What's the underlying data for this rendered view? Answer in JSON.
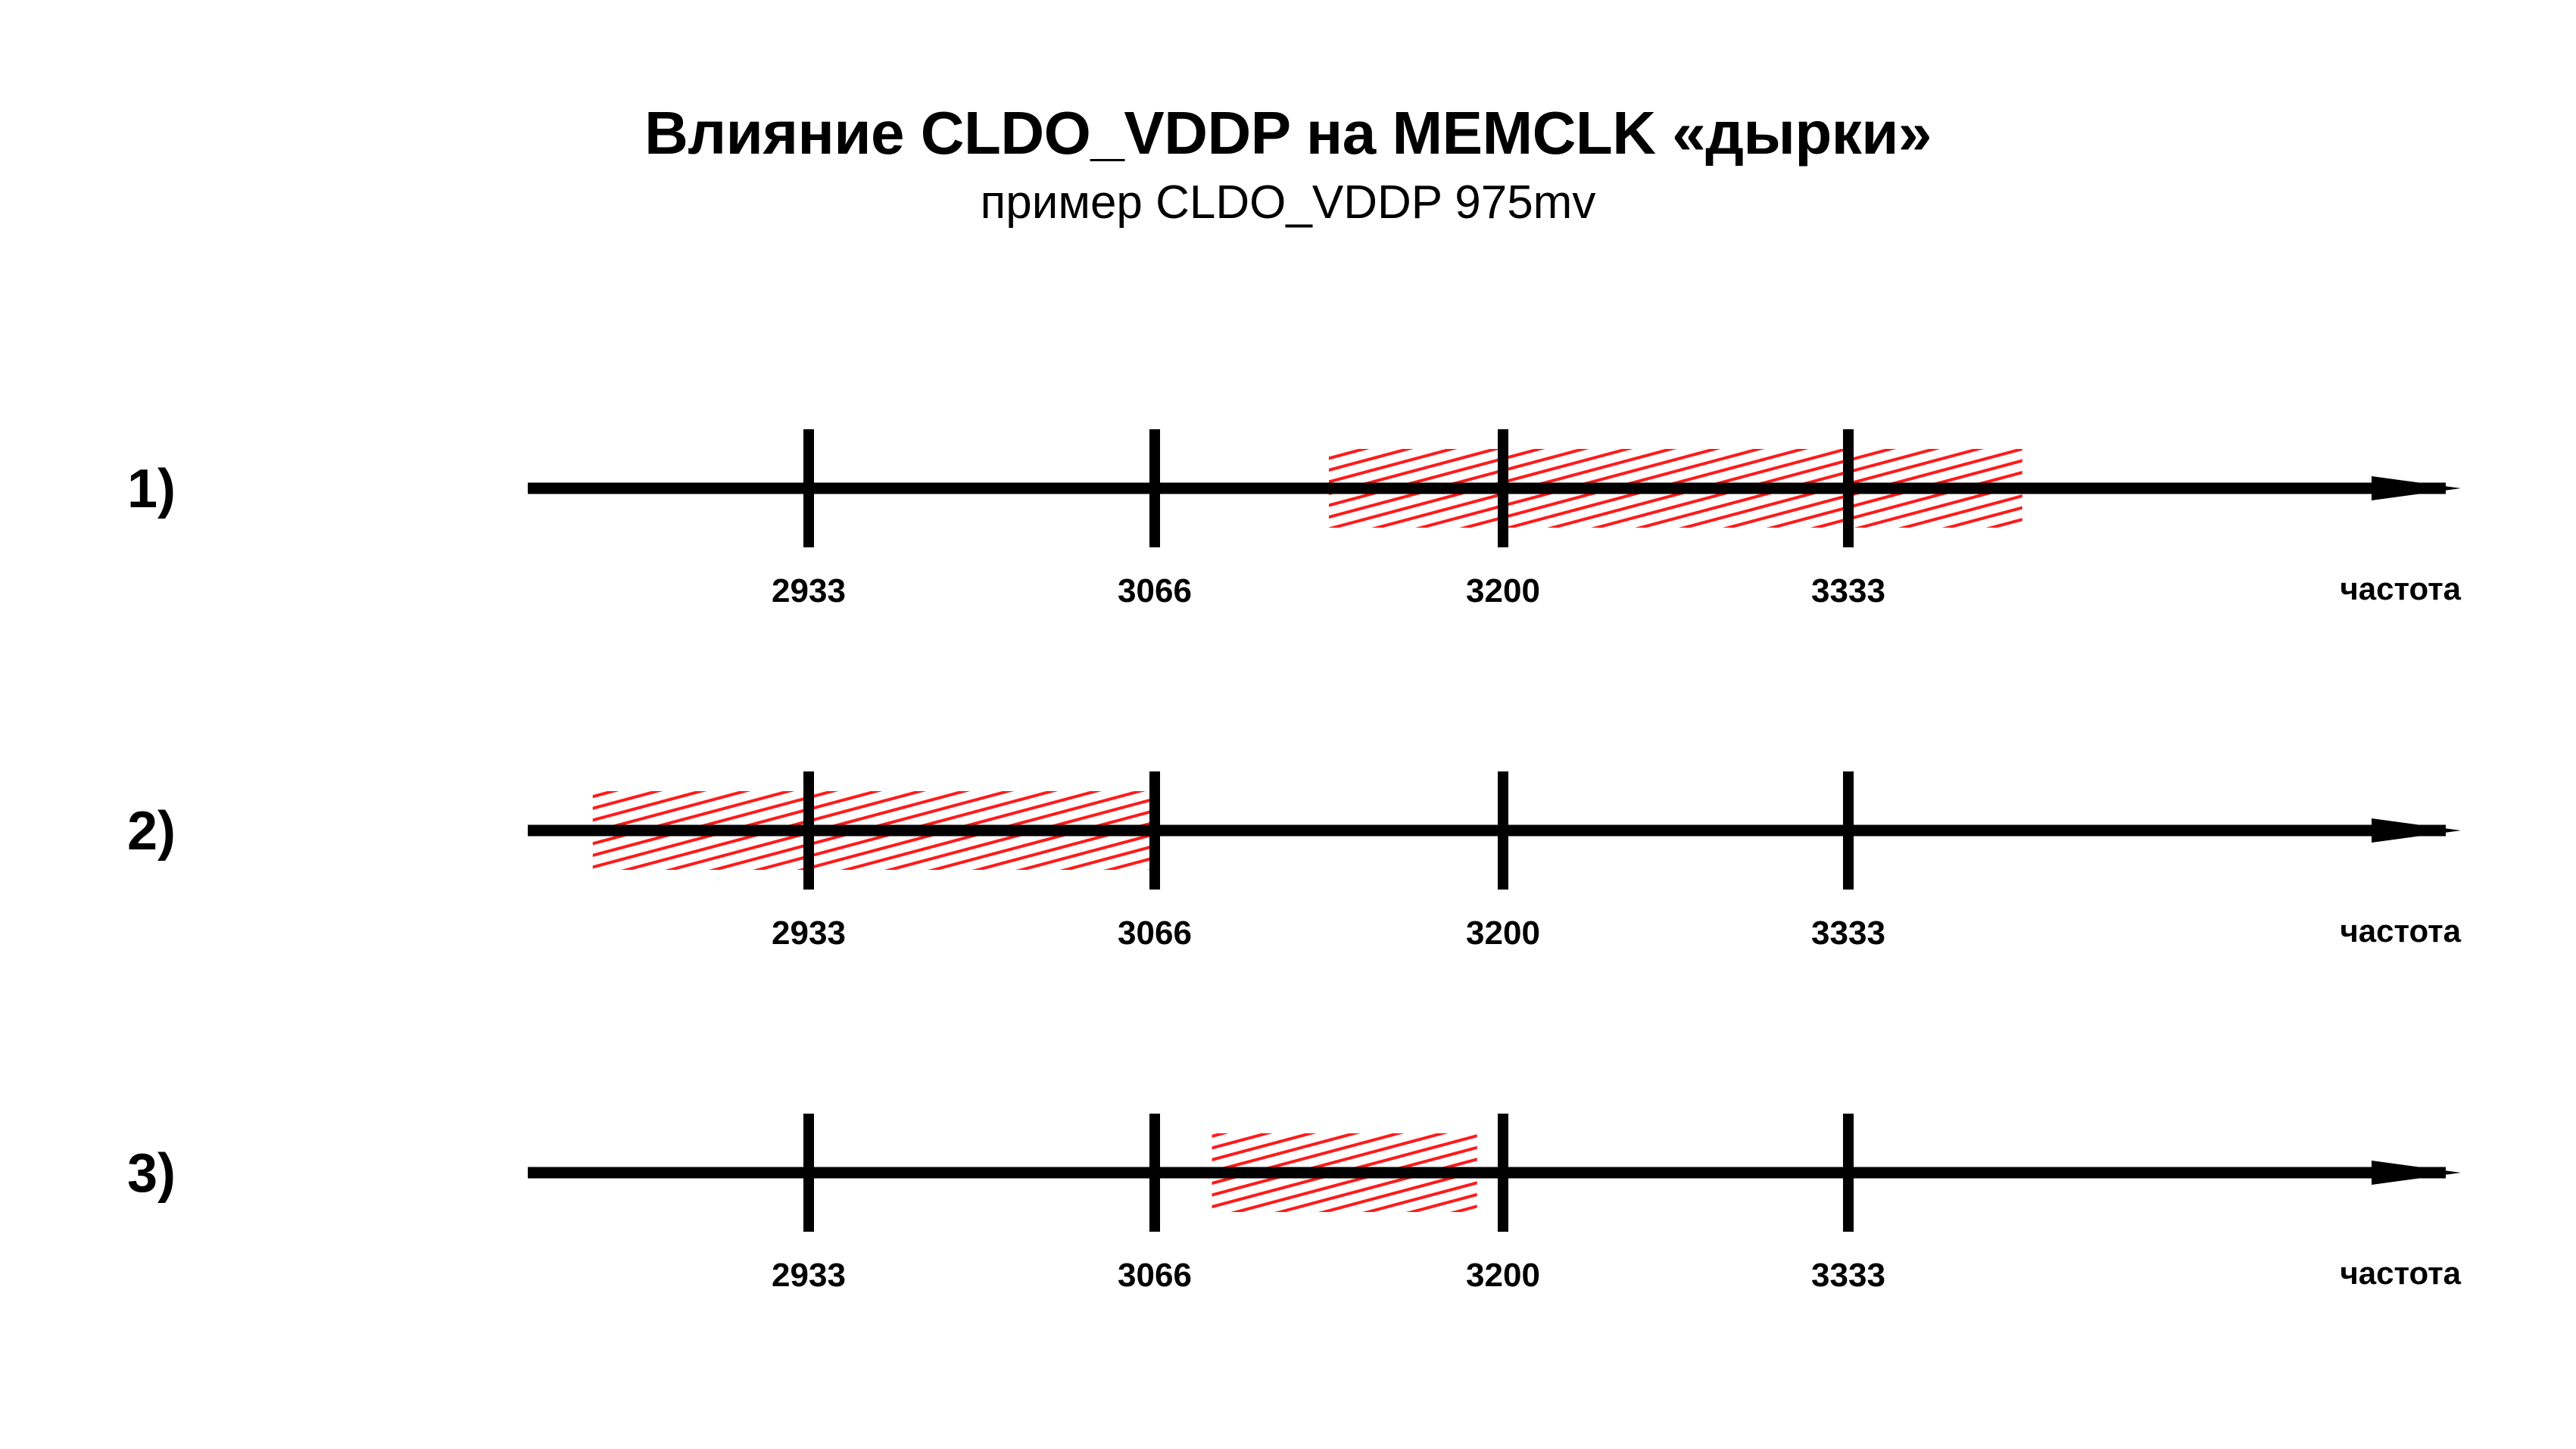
{
  "title": "Влияние CLDO_VDDP на MEMCLK «дырки»",
  "subtitle": "пример CLDO_VDDP 975mv",
  "axis_label": "частота",
  "ticks": [
    "2933",
    "3066",
    "3200",
    "3333"
  ],
  "colors": {
    "axis": "#000000",
    "hatch": "#ff1a1a"
  },
  "rows": [
    {
      "label": "1)",
      "hole_between": [
        "3133",
        "3400"
      ]
    },
    {
      "label": "2)",
      "hole_between": [
        "2850",
        "3066"
      ]
    },
    {
      "label": "3)",
      "hole_between": [
        "3088",
        "3190"
      ]
    }
  ]
}
